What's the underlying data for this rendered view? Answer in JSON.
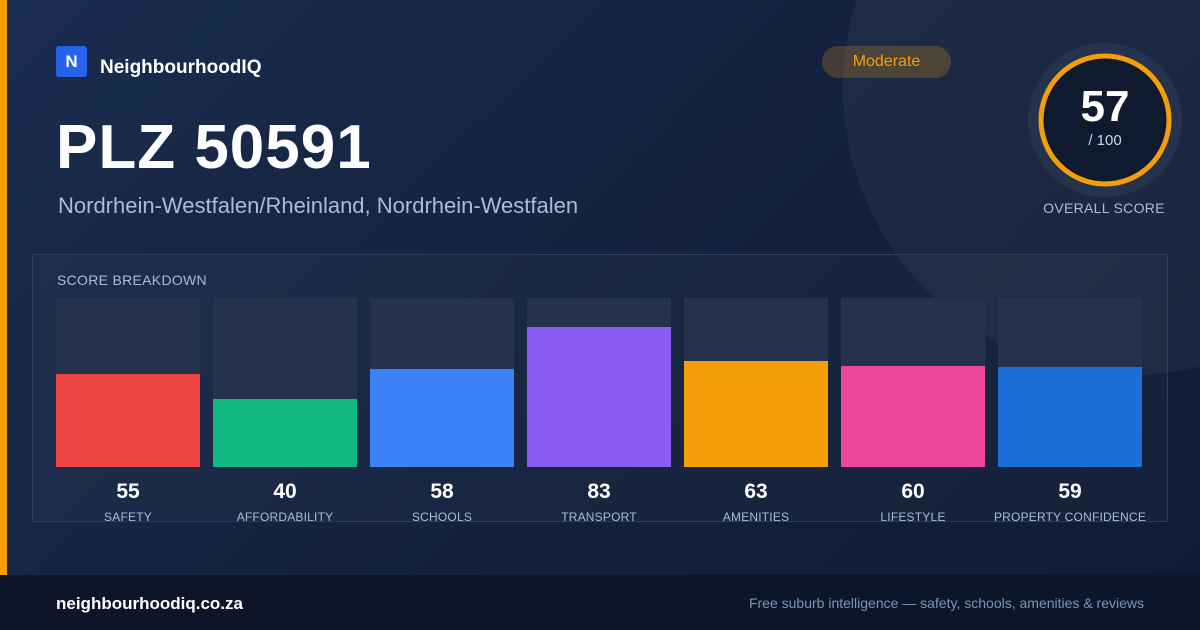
{
  "brand": {
    "logo_letter": "N",
    "name": "NeighbourhoodIQ"
  },
  "badge": {
    "label": "Moderate",
    "color": "#f59e0b"
  },
  "title": "PLZ 50591",
  "subtitle": "Nordrhein-Westfalen/Rheinland, Nordrhein-Westfalen",
  "overall": {
    "value": "57",
    "max_label": "/ 100",
    "caption": "OVERALL SCORE",
    "score": 57,
    "max": 100,
    "color": "#f59e0b"
  },
  "breakdown_title": "SCORE BREAKDOWN",
  "chart_data": {
    "type": "bar",
    "title": "SCORE BREAKDOWN",
    "categories": [
      "SAFETY",
      "AFFORDABILITY",
      "SCHOOLS",
      "TRANSPORT",
      "AMENITIES",
      "LIFESTYLE",
      "PROPERTY CONFIDENCE"
    ],
    "values": [
      55,
      40,
      58,
      83,
      63,
      60,
      59
    ],
    "colors": [
      "#ef4444",
      "#10b981",
      "#3b82f6",
      "#8b5cf6",
      "#f59e0b",
      "#ec4899",
      "#1d6fd8"
    ],
    "ylim": [
      0,
      100
    ],
    "grid": false
  },
  "footer": {
    "domain": "neighbourhoodiq.co.za",
    "tagline": "Free suburb intelligence — safety, schools, amenities & reviews"
  }
}
